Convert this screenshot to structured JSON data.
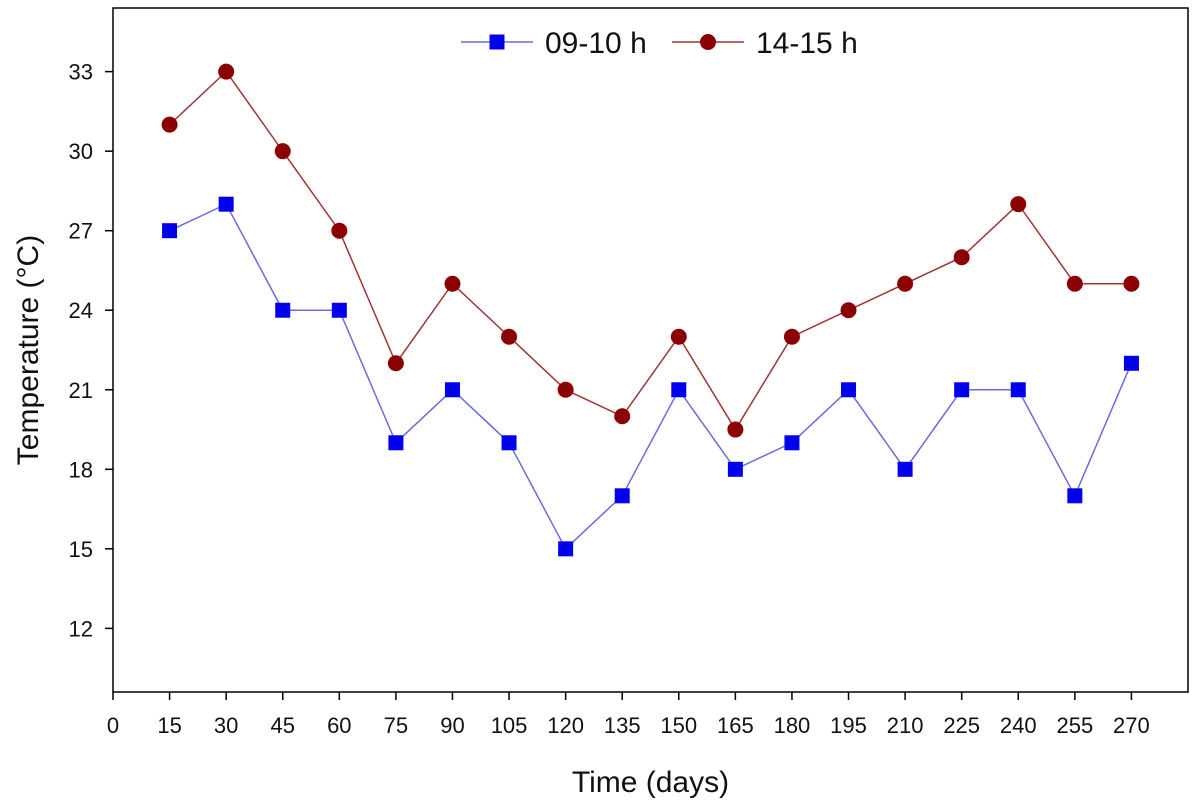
{
  "chart_data": {
    "type": "line",
    "title": "",
    "xlabel": "Time (days)",
    "ylabel": "Temperature (°C)",
    "xlim": [
      0,
      285
    ],
    "ylim": [
      9.6,
      35.4
    ],
    "xticks": [
      0,
      15,
      30,
      45,
      60,
      75,
      90,
      105,
      120,
      135,
      150,
      165,
      180,
      195,
      210,
      225,
      240,
      255,
      270
    ],
    "yticks": [
      12,
      15,
      18,
      21,
      24,
      27,
      30,
      33
    ],
    "legend_position": "top-center",
    "x": [
      15,
      30,
      45,
      60,
      75,
      90,
      105,
      120,
      135,
      150,
      165,
      180,
      195,
      210,
      225,
      240,
      255,
      270
    ],
    "series": [
      {
        "name": "09-10 h",
        "color": "#0000ee",
        "line_color": "#6b6bdb",
        "marker": "square",
        "values": [
          27,
          28,
          24,
          24,
          19,
          21,
          19,
          15,
          17,
          21,
          18,
          19,
          21,
          18,
          21,
          21,
          17,
          22
        ]
      },
      {
        "name": "14-15 h",
        "color": "#8b0000",
        "line_color": "#a03434",
        "marker": "circle",
        "values": [
          31,
          33,
          30,
          27,
          22,
          25,
          23,
          21,
          20,
          23,
          19.5,
          23,
          24,
          25,
          26,
          28,
          25,
          25
        ]
      }
    ]
  }
}
